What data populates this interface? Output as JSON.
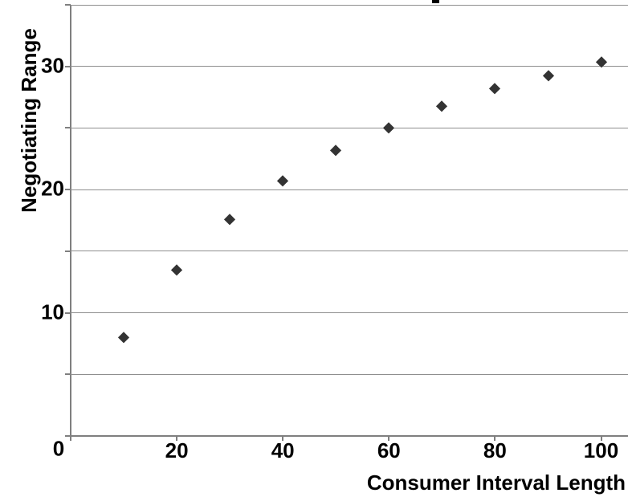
{
  "chart_data": {
    "type": "scatter",
    "title": "",
    "xlabel": "Consumer Interval Length",
    "ylabel": "Negotiating Range",
    "x": [
      10,
      20,
      30,
      40,
      50,
      60,
      70,
      80,
      90,
      100
    ],
    "y": [
      8.0,
      13.5,
      17.6,
      20.7,
      23.2,
      25.0,
      26.8,
      28.2,
      29.3,
      30.4
    ],
    "xlim": [
      0,
      105
    ],
    "ylim": [
      0,
      35
    ],
    "x_tick_values": [
      20,
      40,
      60,
      80,
      100
    ],
    "x_tick_labels": [
      "20",
      "40",
      "60",
      "80",
      "100"
    ],
    "y_tick_values": [
      10,
      20,
      30
    ],
    "y_tick_labels": [
      "10",
      "20",
      "30"
    ],
    "origin_label": "0",
    "y_gridline_step": 5,
    "grid": "horizontal-only",
    "legend": "none",
    "marker": "diamond",
    "colors": {
      "marker": "#333333",
      "gridline": "#8e8e8e",
      "axis": "#7f7f7f",
      "text": "#000000",
      "background": "#ffffff"
    }
  }
}
